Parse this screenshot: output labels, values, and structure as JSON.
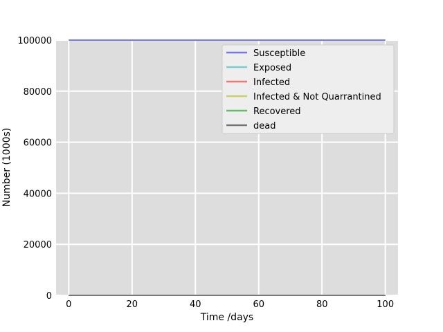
{
  "chart_data": {
    "type": "line",
    "title": "",
    "xlabel": "Time /days",
    "ylabel": "Number (1000s)",
    "xlim": [
      -4,
      104
    ],
    "ylim": [
      0,
      100000
    ],
    "xticks": [
      0,
      20,
      40,
      60,
      80,
      100
    ],
    "yticks": [
      0,
      20000,
      40000,
      60000,
      80000,
      100000
    ],
    "grid": true,
    "legend_position": "top-right",
    "background_color": "#dddddd",
    "series": [
      {
        "name": "Susceptible",
        "color": "#7777ee",
        "x": [
          0,
          100
        ],
        "y": [
          99999,
          99999
        ]
      },
      {
        "name": "Exposed",
        "color": "#77cccc",
        "x": [
          0,
          100
        ],
        "y": [
          1,
          1
        ]
      },
      {
        "name": "Infected",
        "color": "#ee7777",
        "x": [
          0,
          100
        ],
        "y": [
          0,
          0
        ]
      },
      {
        "name": "Infected & Not Quarrantined",
        "color": "#cccc77",
        "x": [
          0,
          100
        ],
        "y": [
          0,
          0
        ]
      },
      {
        "name": "Recovered",
        "color": "#66bb66",
        "x": [
          0,
          100
        ],
        "y": [
          0,
          0
        ]
      },
      {
        "name": "dead",
        "color": "#777777",
        "x": [
          0,
          100
        ],
        "y": [
          0,
          0
        ]
      }
    ]
  }
}
